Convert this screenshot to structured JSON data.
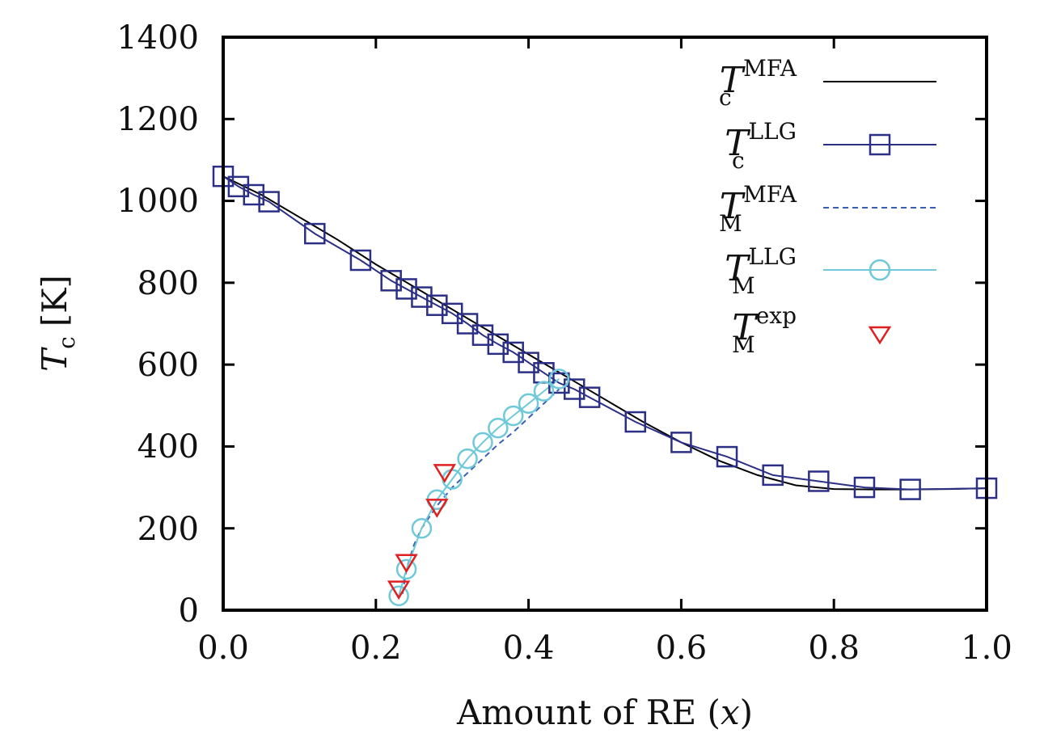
{
  "chart_data": {
    "type": "line",
    "xlabel": "Amount of RE (x)",
    "xlabel_prefix": "Amount of RE (",
    "xlabel_var": "x",
    "xlabel_suffix": ")",
    "ylabel": "T_c [K]",
    "ylabel_var": "T",
    "ylabel_sub": "c",
    "ylabel_unit": "[K]",
    "xlim": [
      0.0,
      1.0
    ],
    "ylim": [
      0,
      1400
    ],
    "xticks": [
      "0.0",
      "0.2",
      "0.4",
      "0.6",
      "0.8",
      "1.0"
    ],
    "yticks": [
      "0",
      "200",
      "400",
      "600",
      "800",
      "1000",
      "1200",
      "1400"
    ],
    "legend_position": "top-right",
    "grid": false,
    "series": [
      {
        "name": "T_c^MFA",
        "label_main": "T",
        "label_sup": "MFA",
        "label_sub": "c",
        "style": "solid-line",
        "color": "#000000",
        "marker": "none",
        "x": [
          0.0,
          0.05,
          0.1,
          0.15,
          0.2,
          0.25,
          0.3,
          0.35,
          0.4,
          0.45,
          0.5,
          0.55,
          0.6,
          0.65,
          0.7,
          0.75,
          0.8,
          0.85,
          0.9,
          0.95,
          1.0
        ],
        "y": [
          1060,
          1015,
          960,
          905,
          845,
          790,
          735,
          680,
          625,
          570,
          515,
          460,
          410,
          365,
          330,
          305,
          296,
          295,
          295,
          296,
          298
        ]
      },
      {
        "name": "T_c^LLG",
        "label_main": "T",
        "label_sup": "LLG",
        "label_sub": "c",
        "style": "solid-line",
        "color": "#2b2f85",
        "marker": "square",
        "x": [
          0.0,
          0.02,
          0.04,
          0.06,
          0.12,
          0.18,
          0.22,
          0.24,
          0.26,
          0.28,
          0.3,
          0.32,
          0.34,
          0.36,
          0.38,
          0.4,
          0.42,
          0.44,
          0.46,
          0.48,
          0.54,
          0.6,
          0.66,
          0.72,
          0.78,
          0.84,
          0.9,
          1.0
        ],
        "y": [
          1060,
          1035,
          1015,
          998,
          920,
          855,
          805,
          785,
          765,
          745,
          725,
          700,
          672,
          650,
          630,
          605,
          580,
          555,
          540,
          520,
          460,
          410,
          375,
          330,
          315,
          300,
          295,
          298
        ]
      },
      {
        "name": "T_M^MFA",
        "label_main": "T",
        "label_sup": "MFA",
        "label_sub": "M",
        "style": "dashed-line",
        "color": "#3a5fb5",
        "marker": "none",
        "x": [
          0.235,
          0.24,
          0.25,
          0.26,
          0.28,
          0.3,
          0.32,
          0.34,
          0.36,
          0.38,
          0.4,
          0.42,
          0.44
        ],
        "y": [
          40,
          100,
          160,
          200,
          255,
          300,
          335,
          370,
          405,
          435,
          470,
          505,
          540
        ]
      },
      {
        "name": "T_M^LLG",
        "label_main": "T",
        "label_sup": "LLG",
        "label_sub": "M",
        "style": "solid-line",
        "color": "#6fc9d9",
        "marker": "circle",
        "x": [
          0.23,
          0.24,
          0.26,
          0.28,
          0.3,
          0.32,
          0.34,
          0.36,
          0.38,
          0.4,
          0.42,
          0.44
        ],
        "y": [
          35,
          100,
          200,
          270,
          320,
          370,
          410,
          445,
          475,
          505,
          535,
          565
        ]
      },
      {
        "name": "T_M^exp",
        "label_main": "T",
        "label_sup": "exp",
        "label_sub": "M",
        "style": "markers-only",
        "color": "#e02020",
        "marker": "triangle-down",
        "x": [
          0.23,
          0.24,
          0.28,
          0.29
        ],
        "y": [
          50,
          115,
          250,
          335
        ]
      }
    ]
  }
}
